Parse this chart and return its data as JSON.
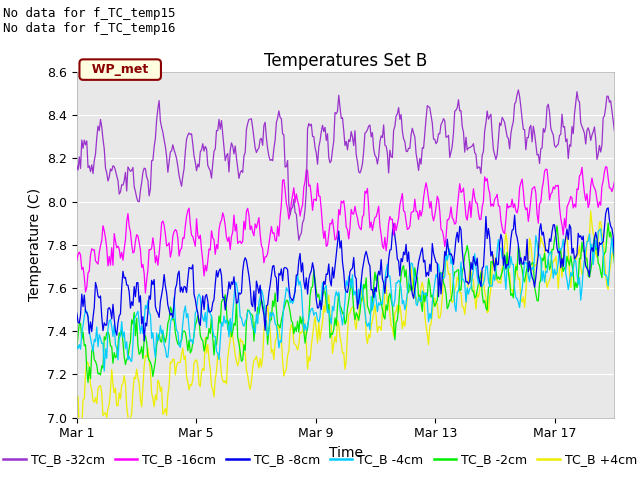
{
  "title": "Temperatures Set B",
  "xlabel": "Time",
  "ylabel": "Temperature (C)",
  "ylim": [
    7.0,
    8.6
  ],
  "xlim": [
    0,
    18
  ],
  "xtick_labels": [
    "Mar 1",
    "Mar 5",
    "Mar 9",
    "Mar 13",
    "Mar 17"
  ],
  "xtick_positions": [
    0,
    4,
    8,
    12,
    16
  ],
  "ytick_values": [
    7.0,
    7.2,
    7.4,
    7.6,
    7.8,
    8.0,
    8.2,
    8.4,
    8.6
  ],
  "colors": {
    "tc_32": "#9933cc",
    "tc_16": "#ff00ff",
    "tc_8": "#0000ee",
    "tc_4": "#00ccff",
    "tc_2": "#00ee00",
    "tc_p4": "#eeee00"
  },
  "legend_labels": [
    "TC_B -32cm",
    "TC_B -16cm",
    "TC_B -8cm",
    "TC_B -4cm",
    "TC_B -2cm",
    "TC_B +4cm"
  ],
  "no_data_text1": "No data for f_TC_temp15",
  "no_data_text2": "No data for f_TC_temp16",
  "wp_met_label": "WP_met",
  "background_color": "#e8e8e8",
  "title_fontsize": 12,
  "axis_label_fontsize": 10,
  "tick_fontsize": 9,
  "legend_fontsize": 9,
  "no_data_fontsize": 9,
  "wp_met_fontsize": 9
}
